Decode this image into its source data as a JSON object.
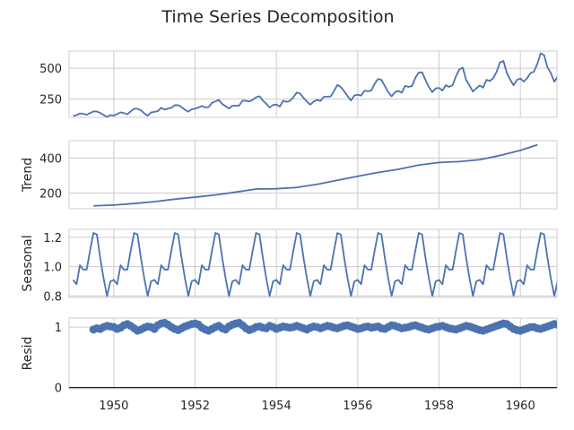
{
  "chart_data": {
    "type": "line",
    "title": "Time Series Decomposition",
    "xlim": [
      1948.9,
      1960.9
    ],
    "xticks": [
      1950,
      1952,
      1954,
      1956,
      1958,
      1960
    ],
    "xtick_labels": [
      "1950",
      "1952",
      "1954",
      "1956",
      "1958",
      "1960"
    ],
    "grid": true,
    "line_color": "#4c72b0",
    "panels": [
      {
        "name": "observed",
        "ylabel": "",
        "ylim": [
          100,
          640
        ],
        "yticks": [
          250,
          500
        ],
        "ytick_labels": [
          "250",
          "500"
        ],
        "x_start": 1949.0,
        "x_step": 0.0833333,
        "values": [
          112,
          118,
          132,
          129,
          121,
          135,
          148,
          148,
          136,
          119,
          104,
          118,
          115,
          126,
          141,
          135,
          125,
          149,
          170,
          170,
          158,
          133,
          114,
          140,
          145,
          150,
          178,
          163,
          172,
          178,
          199,
          199,
          184,
          162,
          146,
          166,
          171,
          180,
          193,
          181,
          183,
          218,
          230,
          242,
          209,
          191,
          172,
          194,
          196,
          196,
          236,
          235,
          229,
          243,
          264,
          272,
          237,
          211,
          180,
          201,
          204,
          188,
          235,
          227,
          234,
          264,
          302,
          293,
          259,
          229,
          203,
          229,
          242,
          233,
          267,
          269,
          270,
          315,
          364,
          347,
          312,
          274,
          237,
          278,
          284,
          277,
          317,
          313,
          318,
          374,
          413,
          405,
          355,
          306,
          271,
          306,
          315,
          301,
          356,
          348,
          355,
          422,
          465,
          467,
          404,
          347,
          305,
          336,
          340,
          318,
          362,
          348,
          363,
          435,
          491,
          505,
          404,
          359,
          310,
          337,
          360,
          342,
          406,
          396,
          420,
          472,
          548,
          559,
          463,
          407,
          362,
          405,
          417,
          391,
          419,
          461,
          472,
          535,
          622,
          606,
          508,
          461,
          390,
          432
        ]
      },
      {
        "name": "trend",
        "ylabel": "Trend",
        "ylim": [
          110,
          500
        ],
        "yticks": [
          200,
          400
        ],
        "ytick_labels": [
          "200",
          "400"
        ],
        "x": [
          1949.5,
          1950.0,
          1950.5,
          1951.0,
          1951.5,
          1952.0,
          1952.5,
          1953.0,
          1953.5,
          1954.0,
          1954.5,
          1955.0,
          1955.5,
          1956.0,
          1956.5,
          1957.0,
          1957.5,
          1958.0,
          1958.5,
          1959.0,
          1959.5,
          1960.0,
          1960.42
        ],
        "values": [
          126.8,
          131.3,
          139.7,
          150.4,
          164.9,
          176.3,
          188.9,
          205.2,
          223.0,
          224.5,
          232.0,
          250.0,
          273.0,
          296.0,
          318.0,
          336.0,
          360.0,
          375.0,
          380.0,
          391.0,
          415.0,
          444.0,
          476.2
        ]
      },
      {
        "name": "seasonal",
        "ylabel": "Seasonal",
        "ylim": [
          0.79,
          1.255
        ],
        "yticks": [
          0.8,
          1.0,
          1.2
        ],
        "ytick_labels": [
          "0.8",
          "1.0",
          "1.2"
        ],
        "x_start": 1949.0,
        "x_step": 0.0833333,
        "pattern": [
          0.91,
          0.88,
          1.01,
          0.98,
          0.98,
          1.11,
          1.23,
          1.22,
          1.06,
          0.92,
          0.8,
          0.9
        ],
        "repeat_count": 144
      },
      {
        "name": "resid",
        "ylabel": "Resid",
        "ylim": [
          -0.02,
          1.15
        ],
        "yticks": [
          0,
          1
        ],
        "ytick_labels": [
          "0",
          "1"
        ],
        "baseline": 0,
        "x_start": 1949.5,
        "x_step": 0.0833333,
        "values": [
          0.96,
          0.98,
          0.97,
          1.0,
          1.02,
          1.01,
          1.0,
          0.97,
          0.99,
          1.03,
          1.05,
          1.02,
          0.98,
          0.94,
          0.96,
          0.99,
          1.01,
          1.0,
          0.97,
          1.03,
          1.06,
          1.07,
          1.04,
          1.0,
          0.97,
          0.95,
          0.98,
          1.01,
          1.03,
          1.05,
          1.06,
          1.04,
          0.99,
          0.96,
          0.94,
          0.97,
          1.0,
          1.02,
          0.98,
          0.96,
          1.01,
          1.04,
          1.06,
          1.07,
          1.03,
          0.98,
          0.95,
          0.97,
          1.0,
          1.01,
          0.99,
          0.98,
          1.02,
          1.0,
          0.97,
          0.99,
          1.01,
          1.0,
          0.99,
          1.0,
          1.02,
          1.0,
          0.98,
          0.96,
          0.99,
          1.01,
          1.0,
          0.98,
          1.0,
          1.02,
          1.01,
          0.99,
          0.98,
          1.0,
          1.02,
          1.03,
          1.01,
          0.99,
          0.97,
          0.98,
          1.0,
          1.01,
          0.99,
          1.0,
          1.01,
          0.98,
          0.97,
          1.0,
          1.03,
          1.02,
          1.0,
          0.98,
          0.99,
          1.0,
          1.02,
          1.03,
          1.01,
          0.99,
          0.97,
          0.96,
          0.98,
          1.0,
          1.01,
          1.02,
          1.0,
          0.98,
          0.97,
          0.96,
          0.98,
          1.0,
          1.02,
          1.01,
          0.99,
          0.97,
          0.95,
          0.94,
          0.96,
          0.98,
          1.0,
          1.02,
          1.04,
          1.06,
          1.05,
          1.01,
          0.97,
          0.95,
          0.94,
          0.96,
          0.98,
          1.0,
          1.0,
          0.98,
          0.97,
          0.99,
          1.01,
          1.03,
          1.05,
          1.04,
          1.01,
          0.98,
          0.99,
          1.0,
          0.98,
          0.93,
          0.97,
          1.0
        ]
      }
    ]
  }
}
